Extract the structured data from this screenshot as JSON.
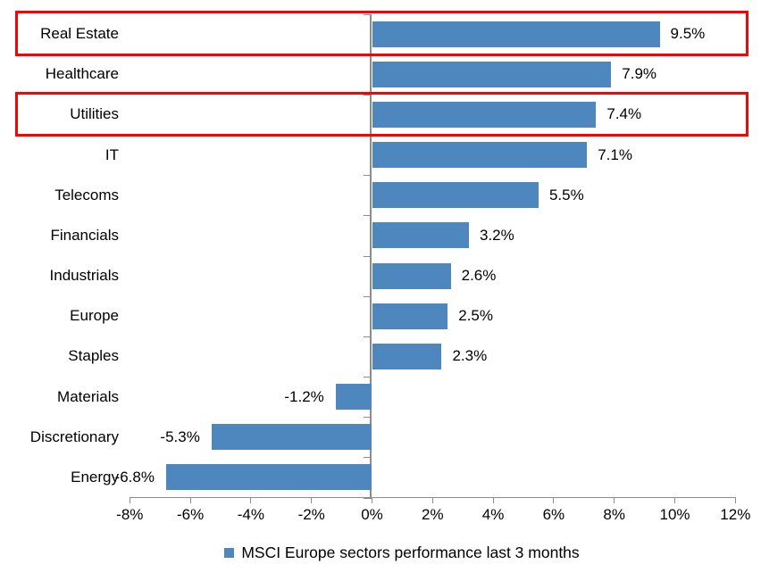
{
  "chart_data": {
    "type": "bar",
    "orientation": "horizontal",
    "title": "",
    "legend": "MSCI Europe sectors performance last 3 months",
    "legend_position": "bottom-center",
    "categories": [
      "Real Estate",
      "Healthcare",
      "Utilities",
      "IT",
      "Telecoms",
      "Financials",
      "Industrials",
      "Europe",
      "Staples",
      "Materials",
      "Discretionary",
      "Energy"
    ],
    "values": [
      9.5,
      7.9,
      7.4,
      7.1,
      5.5,
      3.2,
      2.6,
      2.5,
      2.3,
      -1.2,
      -5.3,
      -6.8
    ],
    "value_labels": [
      "9.5%",
      "7.9%",
      "7.4%",
      "7.1%",
      "5.5%",
      "3.2%",
      "2.6%",
      "2.5%",
      "2.3%",
      "-1.2%",
      "-5.3%",
      "-6.8%"
    ],
    "xlim": [
      -8,
      12
    ],
    "xtick_values": [
      -8,
      -6,
      -4,
      -2,
      0,
      2,
      4,
      6,
      8,
      10,
      12
    ],
    "xtick_labels": [
      "-8%",
      "-6%",
      "-4%",
      "-2%",
      "0%",
      "2%",
      "4%",
      "6%",
      "8%",
      "10%",
      "12%"
    ],
    "grid": false,
    "bar_color": "#4e86be",
    "axis_color": "#8c8c8c",
    "text_color": "#000000"
  },
  "annotations": {
    "highlight_color": "#ff0000",
    "highlighted_categories": [
      "Real Estate",
      "Utilities"
    ]
  }
}
